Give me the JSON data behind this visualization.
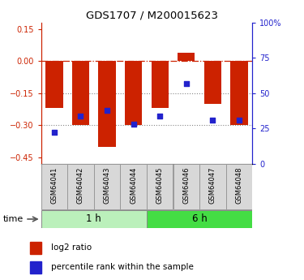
{
  "title": "GDS1707 / M200015623",
  "samples": [
    "GSM64041",
    "GSM64042",
    "GSM64043",
    "GSM64044",
    "GSM64045",
    "GSM64046",
    "GSM64047",
    "GSM64048"
  ],
  "log2_ratio": [
    -0.22,
    -0.3,
    -0.4,
    -0.3,
    -0.22,
    0.04,
    -0.2,
    -0.3
  ],
  "percentile_rank_pct": [
    22,
    34,
    38,
    28,
    34,
    57,
    31,
    31
  ],
  "groups": [
    {
      "label": "1 h",
      "start": 0,
      "end": 4,
      "color": "#bbf0bb"
    },
    {
      "label": "6 h",
      "start": 4,
      "end": 8,
      "color": "#44dd44"
    }
  ],
  "bar_color": "#cc2200",
  "dot_color": "#2222cc",
  "ylim_left": [
    -0.48,
    0.18
  ],
  "ylim_right": [
    0,
    100
  ],
  "yticks_left": [
    0.15,
    0.0,
    -0.15,
    -0.3,
    -0.45
  ],
  "yticks_right": [
    100,
    75,
    50,
    25,
    0
  ],
  "hline_zero_color": "#cc2200",
  "hline_other_color": "#888888",
  "legend_items": [
    "log2 ratio",
    "percentile rank within the sample"
  ],
  "time_label": "time"
}
